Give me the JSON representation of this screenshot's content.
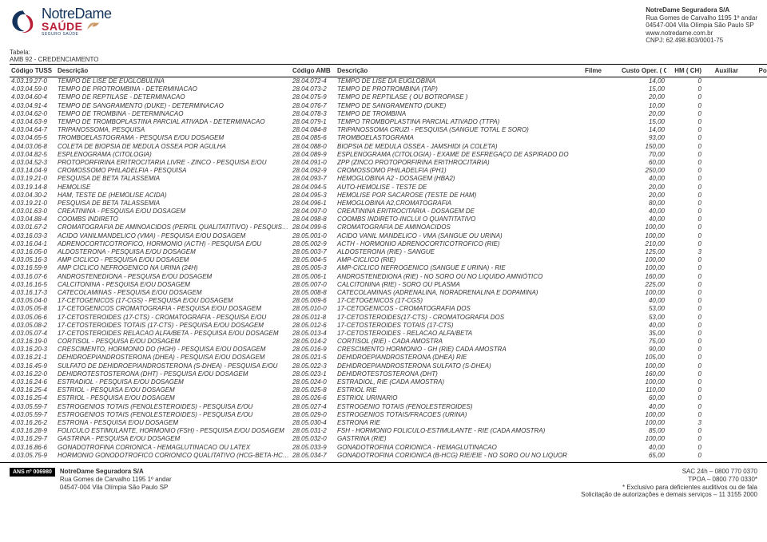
{
  "header": {
    "logo": {
      "notre": "NotreDame",
      "saude": "SAÚDE",
      "seguro": "SEGURO SAÚDE"
    },
    "company": {
      "name": "NotreDame Seguradora S/A",
      "address1": "Rua Gomes de Carvalho 1195 1º andar",
      "address2": "04547-004 Vila Olímpia São Paulo SP",
      "site": "www.notredame.com.br",
      "cnpj": "CNPJ: 62.498.803/0001-75"
    }
  },
  "tabela": {
    "label": "Tabela:",
    "name": "AMB 92 - CREDENCIAMENTO"
  },
  "columns": {
    "tuss": "Código TUSS",
    "desc1": "Descrição",
    "amb": "Código AMB",
    "desc2": "Descrição",
    "filme": "Filme",
    "custo": "Custo Oper. ( CH)",
    "hm": "HM ( CH)",
    "aux": "Auxiliar",
    "porte": "Porte"
  },
  "rows": [
    {
      "tuss": "4.03.19.27-0",
      "desc1": "TEMPO DE LISE DE EUGLOBULINA",
      "amb": "28.04.072-4",
      "desc2": "TEMPO DE LISE DA EUGLOBINA",
      "filme": "",
      "custo": "14,00",
      "hm": "0",
      "aux": "",
      "porte": "0"
    },
    {
      "tuss": "4.03.04.59-0",
      "desc1": "TEMPO DE PROTROMBINA - DETERMINACAO",
      "amb": "28.04.073-2",
      "desc2": "TEMPO DE PROTROMBINA (TAP)",
      "filme": "",
      "custo": "15,00",
      "hm": "0",
      "aux": "",
      "porte": "0"
    },
    {
      "tuss": "4.03.04.60-4",
      "desc1": "TEMPO DE REPTILASE - DETERMINACAO",
      "amb": "28.04.075-9",
      "desc2": "TEMPO DE REPTILASE ( OU BOTROPASE )",
      "filme": "",
      "custo": "20,00",
      "hm": "0",
      "aux": "",
      "porte": "0"
    },
    {
      "tuss": "4.03.04.91-4",
      "desc1": "TEMPO DE SANGRAMENTO (DUKE) - DETERMINACAO",
      "amb": "28.04.076-7",
      "desc2": "TEMPO DE SANGRAMENTO (DUKE)",
      "filme": "",
      "custo": "10,00",
      "hm": "0",
      "aux": "",
      "porte": "0"
    },
    {
      "tuss": "4.03.04.62-0",
      "desc1": "TEMPO DE TROMBINA - DETERMINACAO",
      "amb": "28.04.078-3",
      "desc2": "TEMPO DE TROMBINA",
      "filme": "",
      "custo": "20,00",
      "hm": "0",
      "aux": "",
      "porte": "0"
    },
    {
      "tuss": "4.03.04.63-9",
      "desc1": "TEMPO DE TROMBOPLASTINA PARCIAL ATIVADA - DETERMINACAO",
      "amb": "28.04.079-1",
      "desc2": "TEMPO TROMBOPLASTINA PARCIAL ATIVADO (TTPA)",
      "filme": "",
      "custo": "15,00",
      "hm": "0",
      "aux": "",
      "porte": "0"
    },
    {
      "tuss": "4.03.04.64-7",
      "desc1": "TRIPANOSSOMA, PESQUISA",
      "amb": "28.04.084-8",
      "desc2": "TRIPANOSSOMA CRUZI - PESQUISA (SANGUE TOTAL E SORO)",
      "filme": "",
      "custo": "14,00",
      "hm": "0",
      "aux": "",
      "porte": "0"
    },
    {
      "tuss": "4.03.04.65-5",
      "desc1": "TROMBOELASTOGRAMA - PESQUISA E/OU DOSAGEM",
      "amb": "28.04.085-6",
      "desc2": "TROMBOELASTOGRAMA",
      "filme": "",
      "custo": "93,00",
      "hm": "0",
      "aux": "",
      "porte": "0"
    },
    {
      "tuss": "4.04.03.06-8",
      "desc1": "COLETA DE BIOPSIA DE MEDULA OSSEA POR AGULHA",
      "amb": "28.04.088-0",
      "desc2": "BIOPSIA DE MEDULA OSSEA - JAMSHIDI (A COLETA)",
      "filme": "",
      "custo": "150,00",
      "hm": "0",
      "aux": "",
      "porte": "0"
    },
    {
      "tuss": "4.03.04.82-5",
      "desc1": "ESPLENOGRAMA (CITOLOGIA)",
      "amb": "28.04.089-9",
      "desc2": "ESPLENOGRAMA (CITOLOGIA) - EXAME DE ESFREGAÇO DE ASPIRADO DO",
      "filme": "",
      "custo": "70,00",
      "hm": "0",
      "aux": "",
      "porte": "0"
    },
    {
      "tuss": "4.03.04.52-3",
      "desc1": "PROTOPORFIRINA ERITROCITARIA LIVRE - ZINCO - PESQUISA E/OU",
      "amb": "28.04.091-0",
      "desc2": "ZPP (ZINCO PROTOPORFIRINA ERITHROCITARIA)",
      "filme": "",
      "custo": "60,00",
      "hm": "0",
      "aux": "",
      "porte": "0"
    },
    {
      "tuss": "4.03.14.04-9",
      "desc1": "CROMOSSOMO PHILADELFIA - PESQUISA",
      "amb": "28.04.092-9",
      "desc2": "CROMOSSOMO PHILADELFIA (PH1)",
      "filme": "",
      "custo": "250,00",
      "hm": "0",
      "aux": "",
      "porte": "0"
    },
    {
      "tuss": "4.03.19.21-0",
      "desc1": "PESQUISA DE BETA TALASSEMIA",
      "amb": "28.04.093-7",
      "desc2": "HEMOGLOBINA A2 - DOSAGEM (HBA2)",
      "filme": "",
      "custo": "40,00",
      "hm": "0",
      "aux": "",
      "porte": "0"
    },
    {
      "tuss": "4.03.19.14-8",
      "desc1": "HEMOLISE",
      "amb": "28.04.094-5",
      "desc2": "AUTO-HEMOLISE - TESTE DE",
      "filme": "",
      "custo": "20,00",
      "hm": "0",
      "aux": "",
      "porte": "0"
    },
    {
      "tuss": "4.03.04.30-2",
      "desc1": "HAM, TESTE DE (HEMOLISE ACIDA)",
      "amb": "28.04.095-3",
      "desc2": "HEMOLISE POR SACAROSE (TESTE DE HAM)",
      "filme": "",
      "custo": "20,00",
      "hm": "0",
      "aux": "",
      "porte": "0"
    },
    {
      "tuss": "4.03.19.21-0",
      "desc1": "PESQUISA DE BETA TALASSEMIA",
      "amb": "28.04.096-1",
      "desc2": "HEMOGLOBINA A2,CROMATOGRAFIA",
      "filme": "",
      "custo": "80,00",
      "hm": "0",
      "aux": "",
      "porte": "0"
    },
    {
      "tuss": "4.03.01.63-0",
      "desc1": "CREATININA - PESQUISA E/OU DOSAGEM",
      "amb": "28.04.097-0",
      "desc2": "CREATININA ERITROCITARIA - DOSAGEM DE",
      "filme": "",
      "custo": "40,00",
      "hm": "0",
      "aux": "",
      "porte": "0"
    },
    {
      "tuss": "4.03.04.88-4",
      "desc1": "COOMBS INDIRETO",
      "amb": "28.04.098-8",
      "desc2": "COOMBS INDIRETO-INCLUI O QUANTITATIVO",
      "filme": "",
      "custo": "40,00",
      "hm": "0",
      "aux": "",
      "porte": "0"
    },
    {
      "tuss": "4.03.01.67-2",
      "desc1": "CROMATOGRAFIA DE AMINOACIDOS (PERFIL QUALITATITIVO) - PESQUISA E/OU DOSAGEM",
      "amb": "28.04.099-6",
      "desc2": "CROMATOGRAFIA DE AMINOACIDOS",
      "filme": "",
      "custo": "100,00",
      "hm": "0",
      "aux": "",
      "porte": "0"
    },
    {
      "tuss": "4.03.16.03-3",
      "desc1": "ACIDO VANILMANDELICO (VMA) - PESQUISA E/OU DOSAGEM",
      "amb": "28.05.001-0",
      "desc2": "ACIDO VANIL MANDELICO - VMA (SANGUE OU URINA)",
      "filme": "",
      "custo": "100,00",
      "hm": "0",
      "aux": "",
      "porte": "0"
    },
    {
      "tuss": "4.03.16.04-1",
      "desc1": "ADRENOCORTICOTROFICO, HORMONIO (ACTH) - PESQUISA E/OU",
      "amb": "28.05.002-9",
      "desc2": "ACTH - HORMONIO ADRENOCORTICOTROFICO (RIE)",
      "filme": "",
      "custo": "210,00",
      "hm": "0",
      "aux": "",
      "porte": "0"
    },
    {
      "tuss": "4.03.16.05-0",
      "desc1": "ALDOSTERONA - PESQUISA E/OU DOSAGEM",
      "amb": "28.05.003-7",
      "desc2": "ALDOSTERONA (RIE) - SANGUE",
      "filme": "",
      "custo": "125,00",
      "hm": "3",
      "aux": "",
      "porte": "0"
    },
    {
      "tuss": "4.03.05.16-3",
      "desc1": "AMP CICLICO - PESQUISA E/OU DOSAGEM",
      "amb": "28.05.004-5",
      "desc2": "AMP-CICLICO (RIE)",
      "filme": "",
      "custo": "100,00",
      "hm": "0",
      "aux": "",
      "porte": "0"
    },
    {
      "tuss": "4.03.16.59-9",
      "desc1": "AMP CICLICO NEFROGENICO NA URINA (24H)",
      "amb": "28.05.005-3",
      "desc2": "AMP-CICLICO NEFROGENICO (SANGUE E URINA) - RIE",
      "filme": "",
      "custo": "100,00",
      "hm": "0",
      "aux": "",
      "porte": "0"
    },
    {
      "tuss": "4.03.16.07-6",
      "desc1": "ANDROSTENEDIONA - PESQUISA E/OU DOSAGEM",
      "amb": "28.05.006-1",
      "desc2": "ANDROSTENEDIONA (RIE) - NO SORO OU NO LIQUIDO AMNIÓTICO",
      "filme": "",
      "custo": "160,00",
      "hm": "0",
      "aux": "",
      "porte": "0"
    },
    {
      "tuss": "4.03.16.16-5",
      "desc1": "CALCITONINA - PESQUISA E/OU DOSAGEM",
      "amb": "28.05.007-0",
      "desc2": "CALCITONINA (RIE) - SORO OU PLASMA",
      "filme": "",
      "custo": "225,00",
      "hm": "0",
      "aux": "",
      "porte": "0"
    },
    {
      "tuss": "4.03.16.17-3",
      "desc1": "CATECOLAMINAS - PESQUISA E/OU DOSAGEM",
      "amb": "28.05.008-8",
      "desc2": "CATECOLAMINAS (ADRENALINA, NORADRENALINA E DOPAMINA)",
      "filme": "",
      "custo": "100,00",
      "hm": "0",
      "aux": "",
      "porte": "0"
    },
    {
      "tuss": "4.03.05.04-0",
      "desc1": "17-CETOGENICOS (17-CGS) - PESQUISA E/OU DOSAGEM",
      "amb": "28.05.009-6",
      "desc2": "17-CETOGENICOS (17-CGS)",
      "filme": "",
      "custo": "40,00",
      "hm": "0",
      "aux": "",
      "porte": "0"
    },
    {
      "tuss": "4.03.05.05-8",
      "desc1": "17-CETOGENICOS CROMATOGRAFIA - PESQUISA E/OU DOSAGEM",
      "amb": "28.05.010-0",
      "desc2": "17-CETOGENICOS - CROMATOGRAFIA DOS",
      "filme": "",
      "custo": "53,00",
      "hm": "0",
      "aux": "",
      "porte": "0"
    },
    {
      "tuss": "4.03.05.06-6",
      "desc1": "17-CETOSTEROIDES (17-CTS) - CROMATOGRAFIA - PESQUISA E/OU",
      "amb": "28.05.011-8",
      "desc2": "17-CETOSTEROIDES(17-CTS) - CROMATOGRAFIA DOS",
      "filme": "",
      "custo": "53,00",
      "hm": "0",
      "aux": "",
      "porte": "0"
    },
    {
      "tuss": "4.03.05.08-2",
      "desc1": "17-CETOSTEROIDES TOTAIS (17-CTS) - PESQUISA E/OU DOSAGEM",
      "amb": "28.05.012-6",
      "desc2": "17-CETOSTEROIDES TOTAIS (17-CTS)",
      "filme": "",
      "custo": "40,00",
      "hm": "0",
      "aux": "",
      "porte": "0"
    },
    {
      "tuss": "4.03.05.07-4",
      "desc1": "17-CETOSTEROIDES RELACAO ALFA/BETA - PESQUISA E/OU DOSAGEM",
      "amb": "28.05.013-4",
      "desc2": "17-CETOSTEROIDES - RELACAO ALFA/BETA",
      "filme": "",
      "custo": "35,00",
      "hm": "0",
      "aux": "",
      "porte": "0"
    },
    {
      "tuss": "4.03.16.19-0",
      "desc1": "CORTISOL - PESQUISA E/OU DOSAGEM",
      "amb": "28.05.014-2",
      "desc2": "CORTISOL (RIE) - CADA AMOSTRA",
      "filme": "",
      "custo": "75,00",
      "hm": "0",
      "aux": "",
      "porte": "0"
    },
    {
      "tuss": "4.03.16.20-3",
      "desc1": "CRESCIMENTO, HORMONIO DO (HGH) - PESQUISA E/OU DOSAGEM",
      "amb": "28.05.016-9",
      "desc2": "CRESCIMENTO HORMONIO - GH (RIE) CADA AMOSTRA",
      "filme": "",
      "custo": "90,00",
      "hm": "0",
      "aux": "",
      "porte": "0"
    },
    {
      "tuss": "4.03.16.21-1",
      "desc1": "DEHIDROEPIANDROSTERONA (DHEA) - PESQUISA E/OU DOSAGEM",
      "amb": "28.05.021-5",
      "desc2": "DEHIDROEPIANDROSTERONA (DHEA) RIE",
      "filme": "",
      "custo": "105,00",
      "hm": "0",
      "aux": "",
      "porte": "0"
    },
    {
      "tuss": "4.03.16.45-9",
      "desc1": "SULFATO DE DEHIDROEPIANDROSTERONA (S-DHEA) - PESQUISA E/OU",
      "amb": "28.05.022-3",
      "desc2": "DEHIDROEPIANDROSTERONA SULFATO (S-DHEA)",
      "filme": "",
      "custo": "100,00",
      "hm": "0",
      "aux": "",
      "porte": "0"
    },
    {
      "tuss": "4.03.16.22-0",
      "desc1": "DEHIDROTESTOSTERONA (DHT) - PESQUISA E/OU DOSAGEM",
      "amb": "28.05.023-1",
      "desc2": "DEHIDROTESTOSTERONA (DHT)",
      "filme": "",
      "custo": "160,00",
      "hm": "0",
      "aux": "",
      "porte": "0"
    },
    {
      "tuss": "4.03.16.24-6",
      "desc1": "ESTRADIOL - PESQUISA E/OU DOSAGEM",
      "amb": "28.05.024-0",
      "desc2": "ESTRADIOL, RIE (CADA AMOSTRA)",
      "filme": "",
      "custo": "100,00",
      "hm": "0",
      "aux": "",
      "porte": "0"
    },
    {
      "tuss": "4.03.16.25-4",
      "desc1": "ESTRIOL - PESQUISA E/OU DOSAGEM",
      "amb": "28.05.025-8",
      "desc2": "ESTRIOL RIE",
      "filme": "",
      "custo": "110,00",
      "hm": "0",
      "aux": "",
      "porte": "0"
    },
    {
      "tuss": "4.03.16.25-4",
      "desc1": "ESTRIOL - PESQUISA E/OU DOSAGEM",
      "amb": "28.05.026-6",
      "desc2": "ESTRIOL URINARIO",
      "filme": "",
      "custo": "60,00",
      "hm": "0",
      "aux": "",
      "porte": "0"
    },
    {
      "tuss": "4.03.05.59-7",
      "desc1": "ESTROGENIOS TOTAIS (FENOLESTEROIDES) - PESQUISA E/OU",
      "amb": "28.05.027-4",
      "desc2": "ESTROGENIO TOTAIS (FENOLESTEROIDES)",
      "filme": "",
      "custo": "40,00",
      "hm": "0",
      "aux": "",
      "porte": "0"
    },
    {
      "tuss": "4.03.05.59-7",
      "desc1": "ESTROGENIOS TOTAIS (FENOLESTEROIDES) - PESQUISA E/OU",
      "amb": "28.05.029-0",
      "desc2": "ESTROGENIOS TOTAIS/FRACOES (URINA)",
      "filme": "",
      "custo": "100,00",
      "hm": "0",
      "aux": "",
      "porte": "0"
    },
    {
      "tuss": "4.03.16.26-2",
      "desc1": "ESTRONA - PESQUISA E/OU DOSAGEM",
      "amb": "28.05.030-4",
      "desc2": "ESTRONA RIE",
      "filme": "",
      "custo": "100,00",
      "hm": "3",
      "aux": "",
      "porte": "0"
    },
    {
      "tuss": "4.03.16.28-9",
      "desc1": "FOLICULO ESTIMULANTE, HORMONIO (FSH) - PESQUISA E/OU DOSAGEM",
      "amb": "28.05.031-2",
      "desc2": "FSH - HORMONIO FOLICULO-ESTIMULANTE - RIE (CADA AMOSTRA)",
      "filme": "",
      "custo": "85,00",
      "hm": "0",
      "aux": "",
      "porte": "0"
    },
    {
      "tuss": "4.03.16.29-7",
      "desc1": "GASTRINA - PESQUISA E/OU DOSAGEM",
      "amb": "28.05.032-0",
      "desc2": "GASTRINA (RIE)",
      "filme": "",
      "custo": "100,00",
      "hm": "0",
      "aux": "",
      "porte": "0"
    },
    {
      "tuss": "4.03.16.86-6",
      "desc1": "GONADOTROFINA CORIONICA - HEMAGLUTINACAO OU LATEX",
      "amb": "28.05.033-9",
      "desc2": "GONADOTROFINA CORIONICA - HEMAGLUTINACAO",
      "filme": "",
      "custo": "40,00",
      "hm": "0",
      "aux": "",
      "porte": "0"
    },
    {
      "tuss": "4.03.05.75-9",
      "desc1": "HORMONIO GONODOTROFICO CORIONICO QUALITATIVO (HCG-BETA-HCG) - PESQUISA",
      "amb": "28.05.034-7",
      "desc2": "GONADOTROFINA CORIONICA (B-HCG) RIE/EIE - NO SORO OU NO LIQUOR",
      "filme": "",
      "custo": "65,00",
      "hm": "0",
      "aux": "",
      "porte": "0"
    }
  ],
  "footer": {
    "ans": "ANS nº 006980",
    "company": {
      "name": "NotreDame Seguradora S/A",
      "addr1": "Rua Gomes de Carvalho 1195 1º andar",
      "addr2": "04547-004 Vila Olímpia São Paulo SP"
    },
    "right": {
      "sac": "SAC 24h – 0800 770 0370",
      "tpoa": "TPOA – 0800 770 0330*",
      "note": "* Exclusivo para deficientes auditivos ou de fala",
      "sol": "Solicitação de autorizações e demais serviços – 11 3155 2000"
    }
  }
}
